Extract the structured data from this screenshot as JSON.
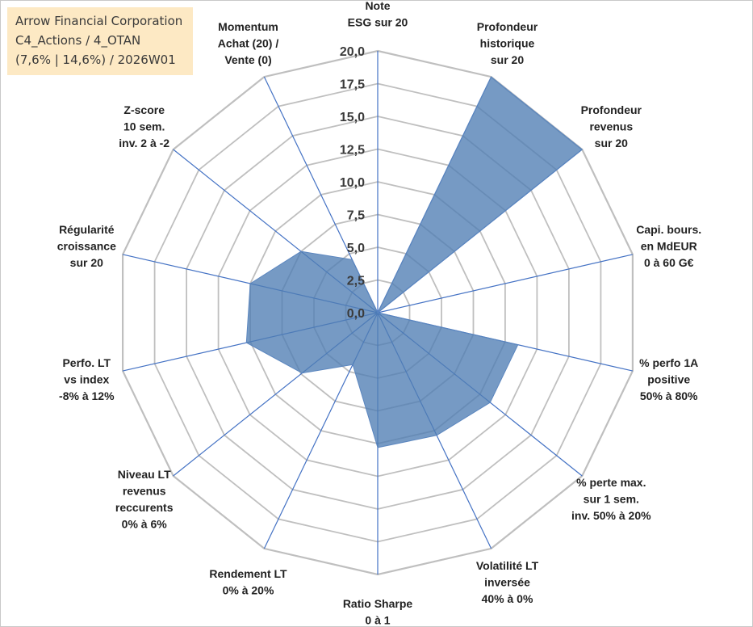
{
  "infobox": {
    "company": "Arrow Financial Corporation",
    "category": "C4_Actions / 4_OTAN",
    "period": "(7,6% | 14,6%) / 2026W01"
  },
  "colors": {
    "fill": "#4f7db3",
    "stroke": "#5b86bf",
    "grid": "#bfbfbf",
    "spoke": "#4472c4",
    "infobox_bg": "#fde9c4"
  },
  "chart_data": {
    "type": "radar",
    "title": "",
    "rlim": [
      0,
      20
    ],
    "tick_values": [
      0,
      2.5,
      5,
      7.5,
      10,
      12.5,
      15,
      17.5,
      20
    ],
    "tick_labels": [
      "0,0",
      "2,5",
      "5,0",
      "7,5",
      "10,0",
      "12,5",
      "15,0",
      "17,5",
      "20,0"
    ],
    "axes": [
      {
        "lines": [
          "Note",
          "ESG sur 20"
        ],
        "value": 0
      },
      {
        "lines": [
          "Profondeur",
          "historique",
          "sur 20"
        ],
        "value": 20
      },
      {
        "lines": [
          "Profondeur",
          "revenus",
          "sur 20"
        ],
        "value": 20
      },
      {
        "lines": [
          "Capi. bours.",
          "en MdEUR",
          "0 à 60 G€"
        ],
        "value": 0
      },
      {
        "lines": [
          "% perfo 1A",
          "positive",
          "50% à 80%"
        ],
        "value": 11
      },
      {
        "lines": [
          "% perte max.",
          "sur 1 sem.",
          "inv. 50% à 20%"
        ],
        "value": 11
      },
      {
        "lines": [
          "Volatilité LT",
          "inversée",
          "40% à 0%"
        ],
        "value": 10.4
      },
      {
        "lines": [
          "Ratio Sharpe",
          "0 à 1"
        ],
        "value": 10.3
      },
      {
        "lines": [
          "Rendement LT",
          "0% à 20%"
        ],
        "value": 4.4
      },
      {
        "lines": [
          "Niveau LT",
          "revenus",
          "reccurents",
          "0% à 6%"
        ],
        "value": 7.4
      },
      {
        "lines": [
          "Perfo. LT",
          "vs index",
          "-8% à 12%"
        ],
        "value": 10.3
      },
      {
        "lines": [
          "Régularité",
          "croissance",
          "sur 20"
        ],
        "value": 10
      },
      {
        "lines": [
          "Z-score",
          "10 sem.",
          "inv. 2 à -2"
        ],
        "value": 7.5
      },
      {
        "lines": [
          "Momentum",
          "Achat (20) /",
          "Vente (0)"
        ],
        "value": 4.5
      }
    ]
  }
}
